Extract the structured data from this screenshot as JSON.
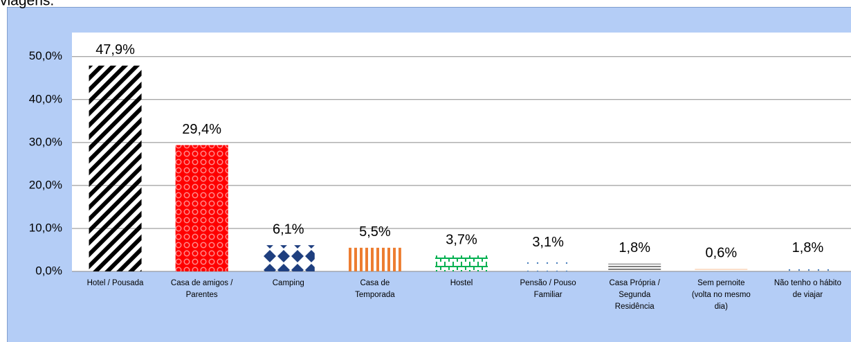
{
  "chart_data": {
    "type": "bar",
    "title": "viagens.",
    "categories": [
      "Hotel / Pousada",
      "Casa de amigos /\nParentes",
      "Camping",
      "Casa de\nTemporada",
      "Hostel",
      "Pensão / Pouso\nFamiliar",
      "Casa Própria /\nSegunda\nResidência",
      "Sem pernoite\n(volta no mesmo\ndia)",
      "Não tenho o hábito\nde viajar"
    ],
    "values": [
      47.9,
      29.4,
      6.1,
      5.5,
      3.7,
      3.1,
      1.8,
      0.6,
      1.8
    ],
    "value_labels": [
      "47,9%",
      "29,4%",
      "6,1%",
      "5,5%",
      "3,7%",
      "3,1%",
      "1,8%",
      "0,6%",
      "1,8%"
    ],
    "colors": [
      "#000000",
      "#ff0000",
      "#1f3f7f",
      "#ed7d31",
      "#00b050",
      "#4a7ebb",
      "#7f7f7f",
      "#f4b183",
      "#4a7ebb"
    ],
    "ylim": [
      0,
      55.6
    ],
    "yticks": [
      {
        "value": 0,
        "label": "0,0%"
      },
      {
        "value": 10,
        "label": "10,0%"
      },
      {
        "value": 20,
        "label": "20,0%"
      },
      {
        "value": 30,
        "label": "30,0%"
      },
      {
        "value": 40,
        "label": "40,0%"
      },
      {
        "value": 50,
        "label": "50,0%"
      }
    ],
    "grid": true
  }
}
